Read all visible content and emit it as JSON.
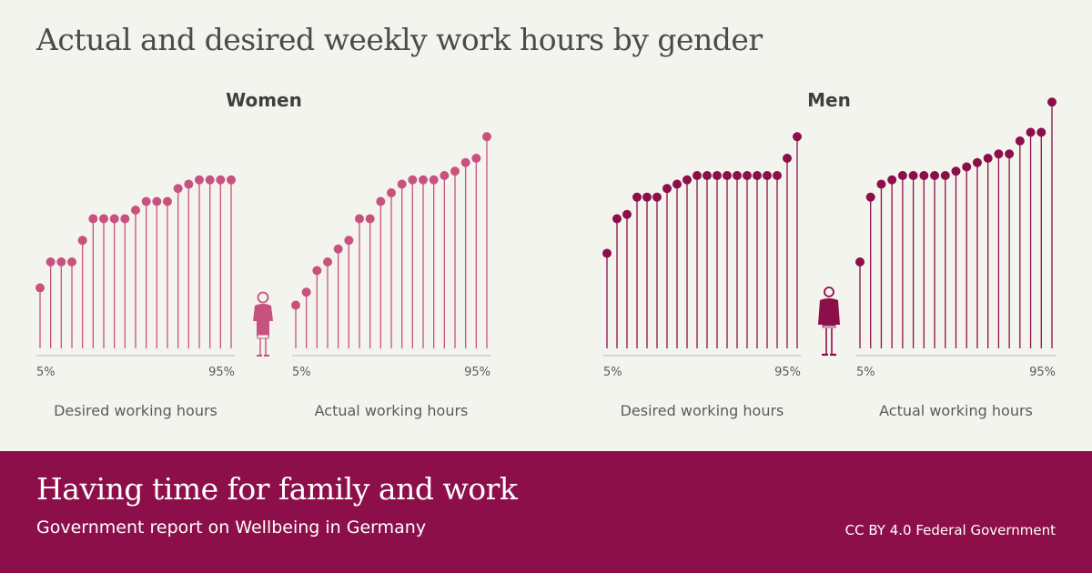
{
  "title": "Actual and desired weekly work hours by gender",
  "footer": {
    "title": "Having time for family and work",
    "subtitle": "Government report on Wellbeing in Germany",
    "credit": "CC BY 4.0 Federal Government"
  },
  "colors": {
    "women": "#c8527f",
    "men": "#8c0f4a",
    "axis": "#b4b4b4",
    "text": "#5a5a5a",
    "background": "#f4f4ef",
    "footer": "#8c0f4a"
  },
  "chart_data": [
    {
      "type": "scatter",
      "group": "Women",
      "xlabel": "Desired working hours",
      "tick_labels": [
        "5%",
        "95%"
      ],
      "values": [
        14,
        20,
        20,
        20,
        25,
        30,
        30,
        30,
        30,
        32,
        34,
        34,
        34,
        37,
        38,
        39,
        39,
        39,
        39
      ]
    },
    {
      "type": "scatter",
      "group": "Women",
      "xlabel": "Actual working hours",
      "tick_labels": [
        "5%",
        "95%"
      ],
      "values": [
        10,
        13,
        18,
        20,
        23,
        25,
        30,
        30,
        34,
        36,
        38,
        39,
        39,
        39,
        40,
        41,
        43,
        44,
        49
      ]
    },
    {
      "type": "scatter",
      "group": "Men",
      "xlabel": "Desired working hours",
      "tick_labels": [
        "5%",
        "95%"
      ],
      "values": [
        22,
        30,
        31,
        35,
        35,
        35,
        37,
        38,
        39,
        40,
        40,
        40,
        40,
        40,
        40,
        40,
        40,
        40,
        44,
        49
      ]
    },
    {
      "type": "scatter",
      "group": "Men",
      "xlabel": "Actual working hours",
      "tick_labels": [
        "5%",
        "95%"
      ],
      "values": [
        20,
        35,
        38,
        39,
        40,
        40,
        40,
        40,
        40,
        41,
        42,
        43,
        44,
        45,
        45,
        48,
        50,
        50,
        57
      ]
    }
  ]
}
